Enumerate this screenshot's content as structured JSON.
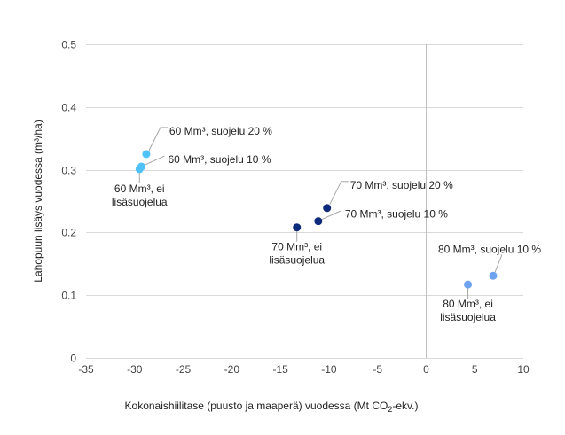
{
  "chart_data": {
    "type": "scatter",
    "title": "",
    "xlabel": "Kokonaishiilitase (puusto ja maaperä) vuodessa (Mt CO₂-ekv.)",
    "xlabel_parts": [
      "Kokonaishiilitase (puusto ja maaperä) vuodessa (Mt CO",
      "2",
      "-ekv.)"
    ],
    "ylabel": "Lahopuun lisäys vuodessa (m³/ha)",
    "xlim": [
      -35,
      10
    ],
    "ylim": [
      0,
      0.5
    ],
    "xticks": [
      -35,
      -30,
      -25,
      -20,
      -15,
      -10,
      -5,
      0,
      5,
      10
    ],
    "yticks": [
      0,
      0.1,
      0.2,
      0.3,
      0.4,
      0.5
    ],
    "xtick_labels": [
      "-35",
      "-30",
      "-25",
      "-20",
      "-15",
      "-10",
      "-5",
      "0",
      "5",
      "10"
    ],
    "ytick_labels": [
      "0",
      "0.1",
      "0.2",
      "0.3",
      "0.4",
      "0.5"
    ],
    "grid": "horizontal",
    "legend": "none",
    "series": [
      {
        "name": "60 Mm³",
        "color": "#4fc3f7",
        "points": [
          {
            "x": -29.5,
            "y": 0.301,
            "label": [
              "60 Mm³, ei",
              "lisäsuojelua"
            ],
            "label_pos": "below"
          },
          {
            "x": -29.3,
            "y": 0.305,
            "label": [
              "60 Mm³, suojelu 10 %"
            ],
            "label_pos": "right"
          },
          {
            "x": -28.8,
            "y": 0.325,
            "label": [
              "60 Mm³, suojelu 20 %"
            ],
            "label_pos": "upper-right"
          }
        ]
      },
      {
        "name": "70 Mm³",
        "color": "#0d2b7a",
        "points": [
          {
            "x": -13.3,
            "y": 0.208,
            "label": [
              "70 Mm³, ei",
              "lisäsuojelua"
            ],
            "label_pos": "below"
          },
          {
            "x": -11.1,
            "y": 0.218,
            "label": [
              "70 Mm³, suojelu 10 %"
            ],
            "label_pos": "right"
          },
          {
            "x": -10.2,
            "y": 0.239,
            "label": [
              "70 Mm³, suojelu 20 %"
            ],
            "label_pos": "upper-right"
          }
        ]
      },
      {
        "name": "80 Mm³",
        "color": "#6fa3f0",
        "points": [
          {
            "x": 4.3,
            "y": 0.117,
            "label": [
              "80 Mm³, ei",
              "lisäsuojelua"
            ],
            "label_pos": "below"
          },
          {
            "x": 6.9,
            "y": 0.131,
            "label": [
              "80 Mm³, suojelu 10 %"
            ],
            "label_pos": "above"
          }
        ]
      }
    ]
  }
}
